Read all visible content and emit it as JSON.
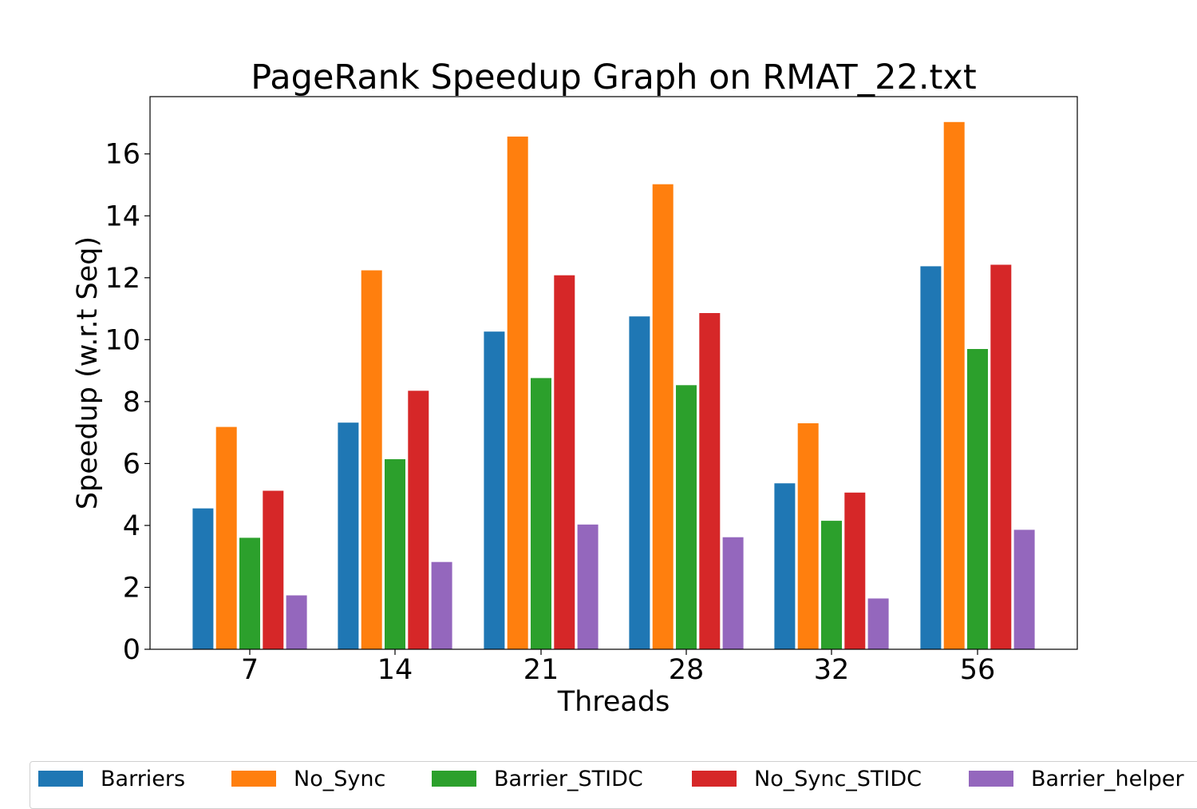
{
  "chart_data": {
    "type": "bar",
    "title": "PageRank Speedup Graph on RMAT_22.txt",
    "xlabel": "Threads",
    "ylabel": "Speedup (w.r.t Seq)",
    "categories": [
      "7",
      "14",
      "21",
      "28",
      "32",
      "56"
    ],
    "ylim": [
      0,
      17.85
    ],
    "yticks": [
      0,
      2,
      4,
      6,
      8,
      10,
      12,
      14,
      16
    ],
    "grid": false,
    "legend_position": "bottom",
    "series": [
      {
        "name": "Barriers",
        "color": "#1f77b4",
        "values": [
          4.55,
          7.32,
          10.26,
          10.75,
          5.36,
          12.37
        ]
      },
      {
        "name": "No_Sync",
        "color": "#ff7f0e",
        "values": [
          7.18,
          12.24,
          16.56,
          15.02,
          7.3,
          17.03
        ]
      },
      {
        "name": "Barrier_STIDC",
        "color": "#2ca02c",
        "values": [
          3.6,
          6.14,
          8.76,
          8.53,
          4.15,
          9.7
        ]
      },
      {
        "name": "No_Sync_STIDC",
        "color": "#d62728",
        "values": [
          5.12,
          8.35,
          12.08,
          10.86,
          5.06,
          12.42
        ]
      },
      {
        "name": "Barrier_helper",
        "color": "#9467bd",
        "values": [
          1.74,
          2.82,
          4.03,
          3.62,
          1.64,
          3.86
        ]
      }
    ]
  }
}
